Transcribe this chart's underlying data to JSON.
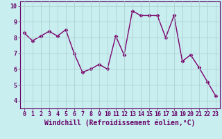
{
  "x": [
    0,
    1,
    2,
    3,
    4,
    5,
    6,
    7,
    8,
    9,
    10,
    11,
    12,
    13,
    14,
    15,
    16,
    17,
    18,
    19,
    20,
    21,
    22,
    23
  ],
  "y": [
    8.3,
    7.8,
    8.1,
    8.4,
    8.1,
    8.5,
    7.0,
    5.8,
    6.0,
    6.3,
    6.0,
    8.1,
    6.9,
    9.7,
    9.4,
    9.4,
    9.4,
    8.0,
    9.4,
    6.5,
    6.9,
    6.1,
    5.2,
    4.3
  ],
  "line_color": "#7B006B",
  "marker": "D",
  "marker_size": 2.5,
  "line_width": 1.0,
  "bg_color": "#C8EEF0",
  "grid_color": "#aacccc",
  "xlabel": "Windchill (Refroidissement éolien,°C)",
  "xlim": [
    -0.5,
    23.5
  ],
  "ylim": [
    3.5,
    10.3
  ],
  "yticks": [
    4,
    5,
    6,
    7,
    8,
    9,
    10
  ],
  "xticks": [
    0,
    1,
    2,
    3,
    4,
    5,
    6,
    7,
    8,
    9,
    10,
    11,
    12,
    13,
    14,
    15,
    16,
    17,
    18,
    19,
    20,
    21,
    22,
    23
  ],
  "tick_label_fontsize": 6.0,
  "xlabel_fontsize": 7.0,
  "axis_color": "#660066"
}
